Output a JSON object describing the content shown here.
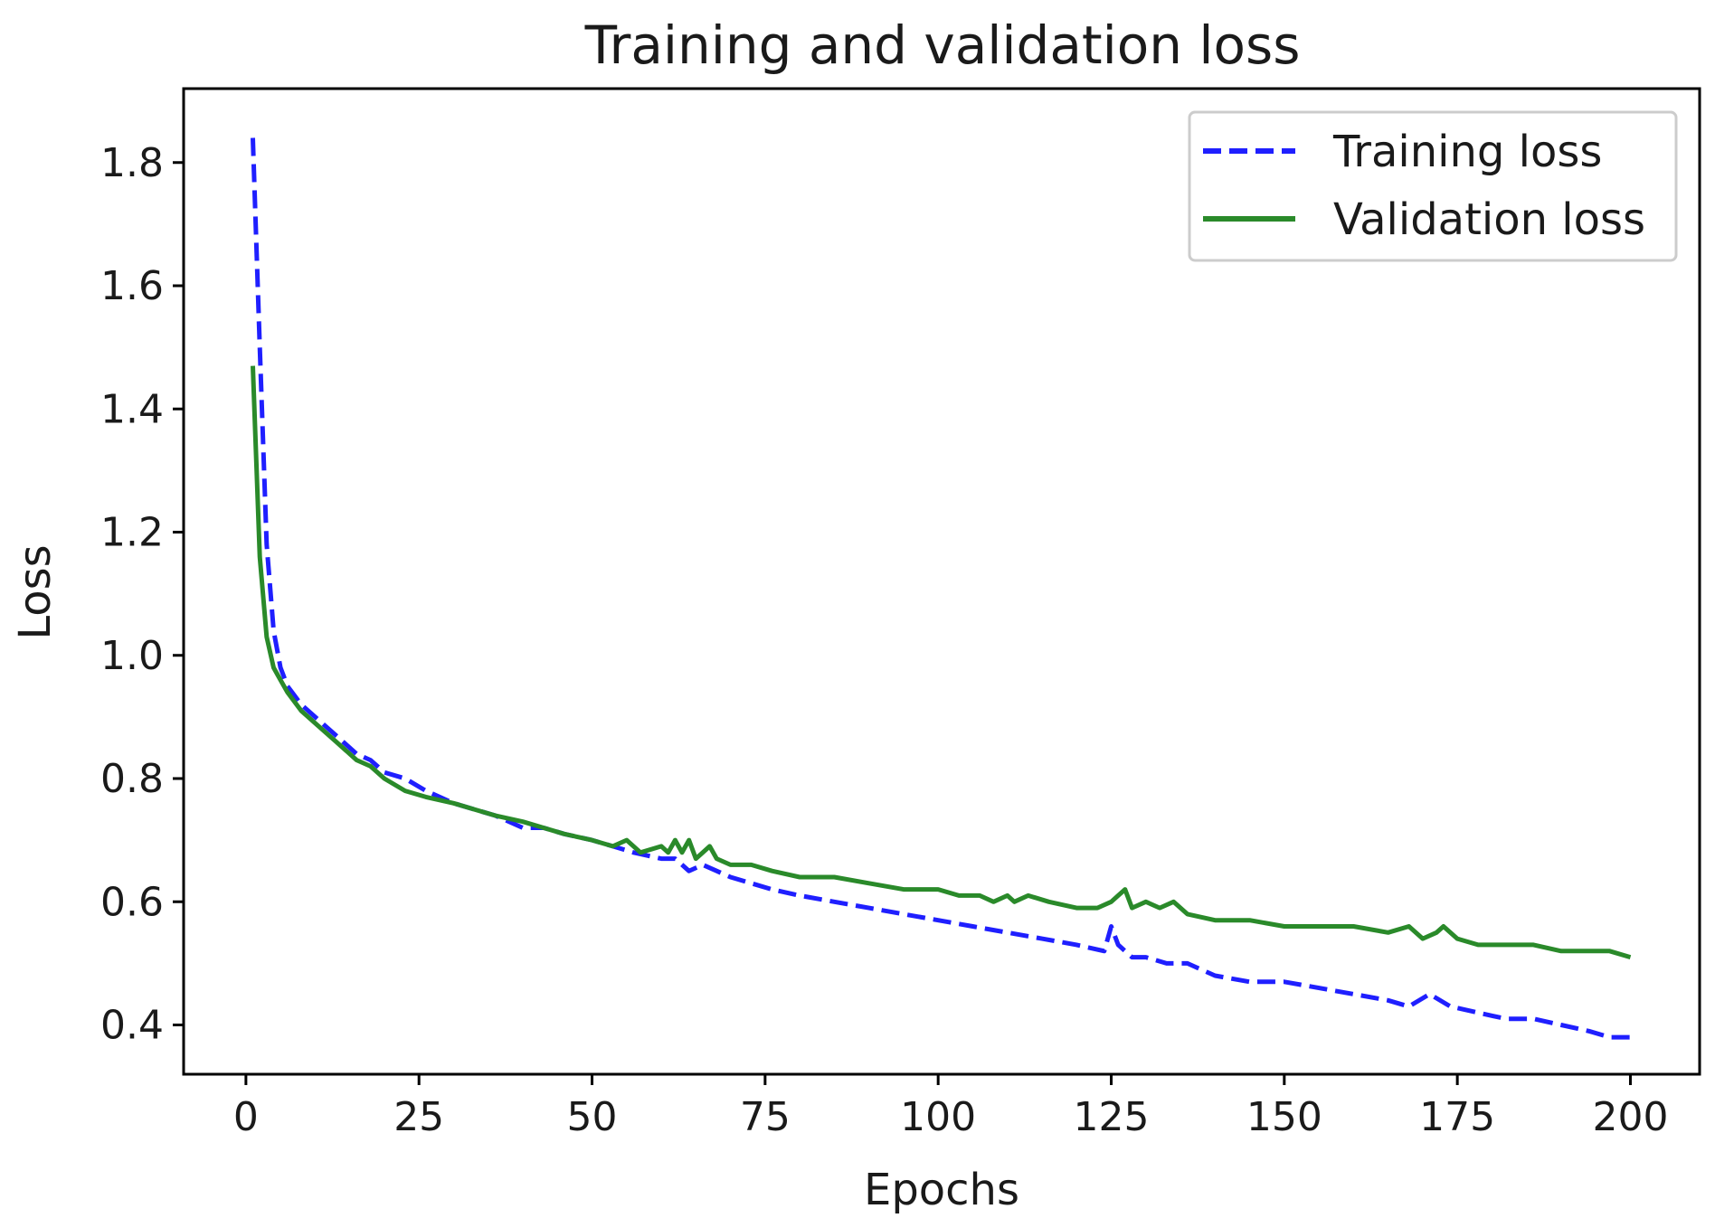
{
  "chart_data": {
    "type": "line",
    "title": "Training and validation loss",
    "xlabel": "Epochs",
    "ylabel": "Loss",
    "xlim": [
      -9,
      210
    ],
    "ylim": [
      0.32,
      1.92
    ],
    "xticks": [
      0,
      25,
      50,
      75,
      100,
      125,
      150,
      175,
      200
    ],
    "yticks": [
      0.4,
      0.6,
      0.8,
      1.0,
      1.2,
      1.4,
      1.6,
      1.8
    ],
    "ytick_labels": [
      "0.4",
      "0.6",
      "0.8",
      "1.0",
      "1.2",
      "1.4",
      "1.6",
      "1.8"
    ],
    "grid": false,
    "legend_position": "top-right",
    "series": [
      {
        "name": "Training loss",
        "color": "#1f1fff",
        "style": "dashed",
        "x": [
          1,
          2,
          3,
          4,
          5,
          6,
          8,
          10,
          13,
          16,
          18,
          20,
          23,
          26,
          30,
          33,
          36,
          40,
          43,
          46,
          50,
          53,
          56,
          60,
          62,
          64,
          66,
          68,
          70,
          73,
          76,
          80,
          85,
          90,
          95,
          100,
          105,
          110,
          115,
          120,
          124,
          125,
          126,
          128,
          130,
          133,
          136,
          140,
          145,
          150,
          155,
          160,
          165,
          168,
          171,
          174,
          178,
          182,
          186,
          190,
          194,
          197,
          200
        ],
        "y": [
          1.84,
          1.5,
          1.18,
          1.04,
          0.98,
          0.95,
          0.92,
          0.9,
          0.87,
          0.84,
          0.83,
          0.81,
          0.8,
          0.78,
          0.76,
          0.75,
          0.74,
          0.72,
          0.72,
          0.71,
          0.7,
          0.69,
          0.68,
          0.67,
          0.67,
          0.65,
          0.66,
          0.65,
          0.64,
          0.63,
          0.62,
          0.61,
          0.6,
          0.59,
          0.58,
          0.57,
          0.56,
          0.55,
          0.54,
          0.53,
          0.52,
          0.56,
          0.53,
          0.51,
          0.51,
          0.5,
          0.5,
          0.48,
          0.47,
          0.47,
          0.46,
          0.45,
          0.44,
          0.43,
          0.45,
          0.43,
          0.42,
          0.41,
          0.41,
          0.4,
          0.39,
          0.38,
          0.38
        ]
      },
      {
        "name": "Validation loss",
        "color": "#2a8a2a",
        "style": "solid",
        "x": [
          1,
          2,
          3,
          4,
          5,
          6,
          8,
          10,
          13,
          16,
          18,
          20,
          23,
          26,
          30,
          33,
          36,
          40,
          43,
          46,
          50,
          53,
          55,
          57,
          60,
          61,
          62,
          63,
          64,
          65,
          66,
          67,
          68,
          70,
          73,
          76,
          80,
          85,
          90,
          95,
          100,
          103,
          106,
          108,
          110,
          111,
          113,
          116,
          120,
          123,
          125,
          126,
          127,
          128,
          130,
          132,
          134,
          136,
          140,
          145,
          150,
          155,
          160,
          165,
          168,
          170,
          172,
          173,
          175,
          178,
          182,
          186,
          190,
          194,
          197,
          200
        ],
        "y": [
          1.47,
          1.16,
          1.03,
          0.98,
          0.96,
          0.94,
          0.91,
          0.89,
          0.86,
          0.83,
          0.82,
          0.8,
          0.78,
          0.77,
          0.76,
          0.75,
          0.74,
          0.73,
          0.72,
          0.71,
          0.7,
          0.69,
          0.7,
          0.68,
          0.69,
          0.68,
          0.7,
          0.68,
          0.7,
          0.67,
          0.68,
          0.69,
          0.67,
          0.66,
          0.66,
          0.65,
          0.64,
          0.64,
          0.63,
          0.62,
          0.62,
          0.61,
          0.61,
          0.6,
          0.61,
          0.6,
          0.61,
          0.6,
          0.59,
          0.59,
          0.6,
          0.61,
          0.62,
          0.59,
          0.6,
          0.59,
          0.6,
          0.58,
          0.57,
          0.57,
          0.56,
          0.56,
          0.56,
          0.55,
          0.56,
          0.54,
          0.55,
          0.56,
          0.54,
          0.53,
          0.53,
          0.53,
          0.52,
          0.52,
          0.52,
          0.51
        ]
      }
    ]
  }
}
